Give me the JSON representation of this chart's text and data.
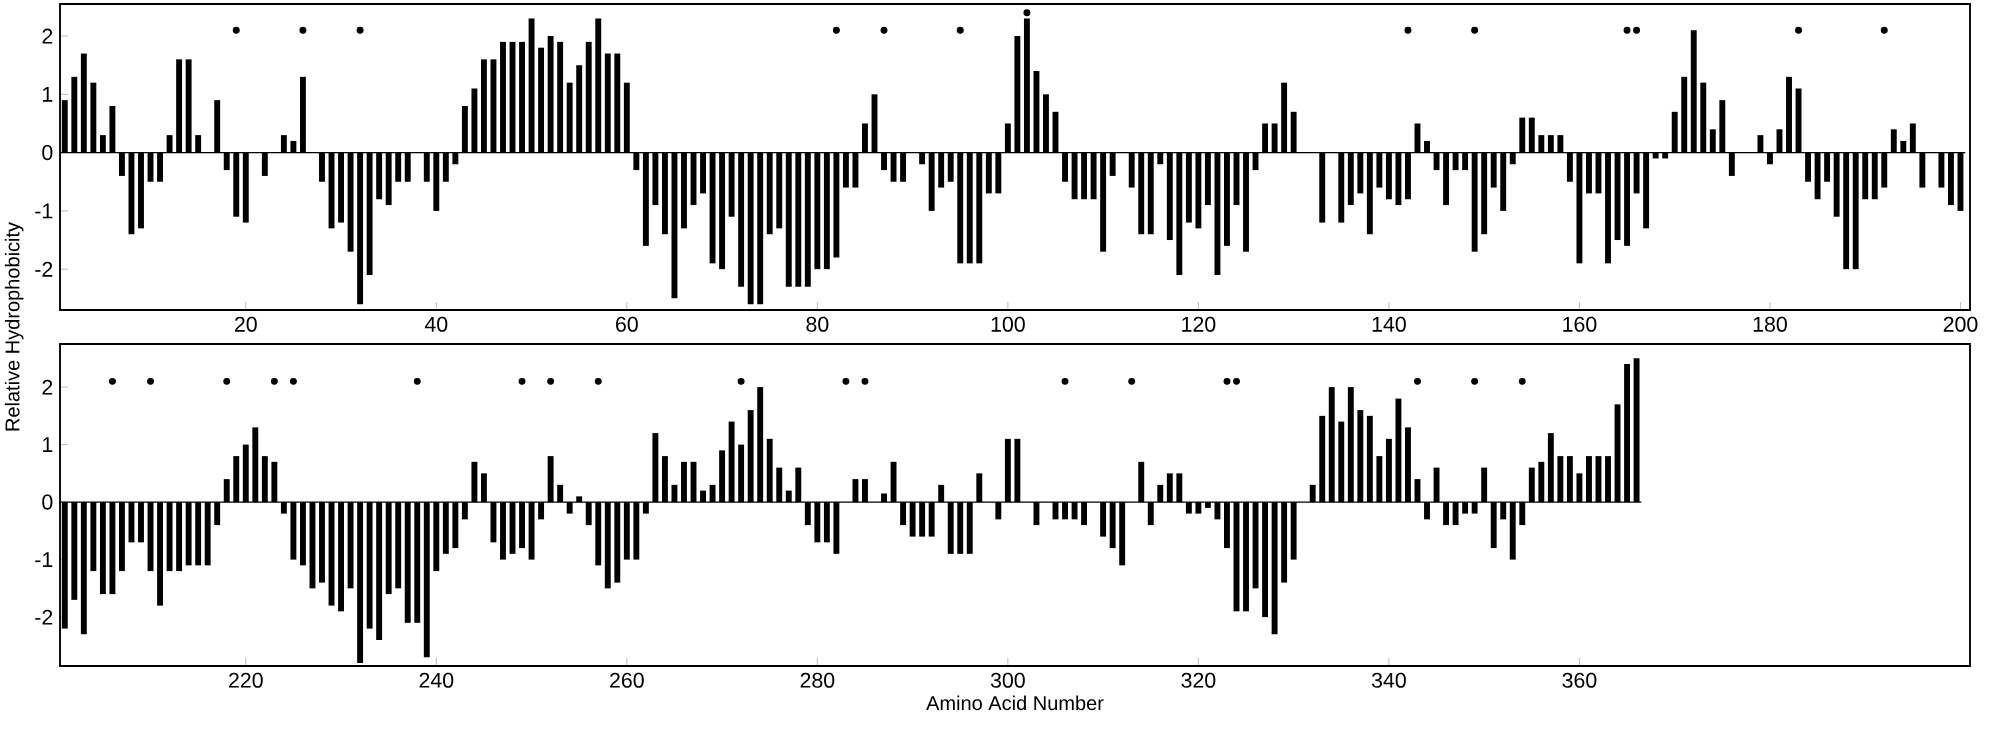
{
  "chart_data": [
    {
      "type": "bar",
      "ylabel": "Relative Hydrophobicity",
      "xlim": [
        0.5,
        201
      ],
      "ylim": [
        -2.7,
        2.55
      ],
      "xticks": [
        20,
        40,
        60,
        80,
        100,
        120,
        140,
        160,
        180,
        200
      ],
      "yticks": [
        -2,
        -1,
        0,
        1,
        2
      ],
      "series": [
        {
          "color": "#000000",
          "x": [
            1,
            2,
            3,
            4,
            5,
            6,
            7,
            8,
            9,
            10,
            11,
            12,
            13,
            14,
            15,
            16,
            17,
            18,
            19,
            20,
            21,
            22,
            23,
            24,
            25,
            26,
            27,
            28,
            29,
            30,
            31,
            32,
            33,
            34,
            35,
            36,
            37,
            38,
            39,
            40,
            41,
            42,
            43,
            44,
            45,
            46,
            47,
            48,
            49,
            50,
            51,
            52,
            53,
            54,
            55,
            56,
            57,
            58,
            59,
            60,
            61,
            62,
            63,
            64,
            65,
            66,
            67,
            68,
            69,
            70,
            71,
            72,
            73,
            74,
            75,
            76,
            77,
            78,
            79,
            80,
            81,
            82,
            83,
            84,
            85,
            86,
            87,
            88,
            89,
            90,
            91,
            92,
            93,
            94,
            95,
            96,
            97,
            98,
            99,
            100,
            101,
            102,
            103,
            104,
            105,
            106,
            107,
            108,
            109,
            110,
            111,
            112,
            113,
            114,
            115,
            116,
            117,
            118,
            119,
            120,
            121,
            122,
            123,
            124,
            125,
            126,
            127,
            128,
            129,
            130,
            131,
            132,
            133,
            134,
            135,
            136,
            137,
            138,
            139,
            140,
            141,
            142,
            143,
            144,
            145,
            146,
            147,
            148,
            149,
            150,
            151,
            152,
            153,
            154,
            155,
            156,
            157,
            158,
            159,
            160,
            161,
            162,
            163,
            164,
            165,
            166,
            167,
            168,
            169,
            170,
            171,
            172,
            173,
            174,
            175,
            176,
            177,
            178,
            179,
            180,
            181,
            182,
            183,
            184,
            185,
            186,
            187,
            188,
            189,
            190,
            191,
            192,
            193,
            194,
            195,
            196,
            197,
            198,
            199,
            200
          ],
          "values": [
            0.9,
            1.3,
            1.7,
            1.2,
            0.3,
            0.8,
            -0.4,
            -1.4,
            -1.3,
            -0.5,
            -0.5,
            0.3,
            1.6,
            1.6,
            0.3,
            0,
            0.9,
            -0.3,
            -1.1,
            -1.2,
            0,
            -0.4,
            0,
            0.3,
            0.2,
            1.3,
            0,
            -0.5,
            -1.3,
            -1.2,
            -1.7,
            -2.6,
            -2.1,
            -0.8,
            -0.9,
            -0.5,
            -0.5,
            0,
            -0.5,
            -1.0,
            -0.5,
            -0.2,
            0.8,
            1.1,
            1.6,
            1.6,
            1.9,
            1.9,
            1.9,
            2.3,
            1.8,
            2.0,
            1.9,
            1.2,
            1.5,
            1.9,
            2.3,
            1.7,
            1.7,
            1.2,
            -0.3,
            -1.6,
            -0.9,
            -1.4,
            -2.5,
            -1.3,
            -0.9,
            -0.7,
            -1.9,
            -2.0,
            -1.1,
            -2.3,
            -2.6,
            -2.6,
            -1.4,
            -1.3,
            -2.3,
            -2.3,
            -2.3,
            -2.0,
            -2.0,
            -1.8,
            -0.6,
            -0.6,
            0.5,
            1.0,
            -0.3,
            -0.5,
            -0.5,
            0,
            -0.2,
            -1.0,
            -0.6,
            -0.5,
            -1.9,
            -1.9,
            -1.9,
            -0.7,
            -0.7,
            0.5,
            2.0,
            2.3,
            1.4,
            1.0,
            0.7,
            -0.5,
            -0.8,
            -0.8,
            -0.8,
            -1.7,
            -0.4,
            0,
            -0.6,
            -1.4,
            -1.4,
            -0.2,
            -1.5,
            -2.1,
            -1.2,
            -1.3,
            -0.9,
            -2.1,
            -1.6,
            -0.9,
            -1.7,
            -0.3,
            0.5,
            0.5,
            1.2,
            0.7,
            0,
            0,
            -1.2,
            0,
            -1.2,
            -0.9,
            -0.7,
            -1.4,
            -0.6,
            -0.8,
            -0.9,
            -0.8,
            0.5,
            0.2,
            -0.3,
            -0.9,
            -0.3,
            -0.3,
            -1.7,
            -1.4,
            -0.6,
            -1.0,
            -0.2,
            0.6,
            0.6,
            0.3,
            0.3,
            0.3,
            -0.5,
            -1.9,
            -0.7,
            -0.7,
            -1.9,
            -1.5,
            -1.6,
            -0.7,
            -1.3,
            -0.1,
            -0.1,
            0.7,
            1.3,
            2.1,
            1.2,
            0.4,
            0.9,
            -0.4,
            0,
            0,
            0.3,
            -0.2,
            0.4,
            1.3,
            1.1,
            -0.5,
            -0.8,
            -0.5,
            -1.1,
            -2.0,
            -2.0,
            -0.8,
            -0.8,
            -0.6,
            0.4,
            0.2,
            0.5,
            -0.6,
            0,
            -0.6,
            -0.9,
            -1.0
          ]
        },
        {
          "type": "scatter",
          "color": "#000000",
          "marker": "circle",
          "x": [
            19,
            26,
            32,
            82,
            87,
            95,
            102,
            142,
            149,
            165,
            166,
            183,
            192
          ],
          "values": [
            2.1,
            2.1,
            2.1,
            2.1,
            2.1,
            2.1,
            2.4,
            2.1,
            2.1,
            2.1,
            2.1,
            2.1,
            2.1
          ]
        }
      ]
    },
    {
      "type": "bar",
      "xlabel": "Amino Acid Number",
      "xlim": [
        200.5,
        401
      ],
      "ylim": [
        -2.85,
        2.75
      ],
      "xticks": [
        220,
        240,
        260,
        280,
        300,
        320,
        340,
        360
      ],
      "yticks": [
        -2,
        -1,
        0,
        1,
        2
      ],
      "series": [
        {
          "color": "#000000",
          "x": [
            201,
            202,
            203,
            204,
            205,
            206,
            207,
            208,
            209,
            210,
            211,
            212,
            213,
            214,
            215,
            216,
            217,
            218,
            219,
            220,
            221,
            222,
            223,
            224,
            225,
            226,
            227,
            228,
            229,
            230,
            231,
            232,
            233,
            234,
            235,
            236,
            237,
            238,
            239,
            240,
            241,
            242,
            243,
            244,
            245,
            246,
            247,
            248,
            249,
            250,
            251,
            252,
            253,
            254,
            255,
            256,
            257,
            258,
            259,
            260,
            261,
            262,
            263,
            264,
            265,
            266,
            267,
            268,
            269,
            270,
            271,
            272,
            273,
            274,
            275,
            276,
            277,
            278,
            279,
            280,
            281,
            282,
            283,
            284,
            285,
            286,
            287,
            288,
            289,
            290,
            291,
            292,
            293,
            294,
            295,
            296,
            297,
            298,
            299,
            300,
            301,
            302,
            303,
            304,
            305,
            306,
            307,
            308,
            309,
            310,
            311,
            312,
            313,
            314,
            315,
            316,
            317,
            318,
            319,
            320,
            321,
            322,
            323,
            324,
            325,
            326,
            327,
            328,
            329,
            330,
            331,
            332,
            333,
            334,
            335,
            336,
            337,
            338,
            339,
            340,
            341,
            342,
            343,
            344,
            345,
            346,
            347,
            348,
            349,
            350,
            351,
            352,
            353,
            354,
            355,
            356,
            357,
            358,
            359,
            360,
            361,
            362,
            363,
            364,
            365,
            366
          ],
          "values": [
            -2.2,
            -1.7,
            -2.3,
            -1.2,
            -1.6,
            -1.6,
            -1.2,
            -0.7,
            -0.7,
            -1.2,
            -1.8,
            -1.2,
            -1.2,
            -1.1,
            -1.1,
            -1.1,
            -0.4,
            0.4,
            0.8,
            1.0,
            1.3,
            0.8,
            0.7,
            -0.2,
            -1.0,
            -1.1,
            -1.5,
            -1.4,
            -1.8,
            -1.9,
            -1.5,
            -2.8,
            -2.2,
            -2.4,
            -1.6,
            -1.5,
            -2.1,
            -2.1,
            -2.7,
            -1.2,
            -0.9,
            -0.8,
            -0.3,
            0.7,
            0.5,
            -0.7,
            -1.0,
            -0.9,
            -0.8,
            -1.0,
            -0.3,
            0.8,
            0.3,
            -0.2,
            0.1,
            -0.4,
            -1.1,
            -1.5,
            -1.4,
            -1.0,
            -1.0,
            -0.2,
            1.2,
            0.8,
            0.3,
            0.7,
            0.7,
            0.2,
            0.3,
            0.9,
            1.4,
            1.0,
            1.6,
            2.0,
            1.1,
            0.6,
            0.2,
            0.6,
            -0.4,
            -0.7,
            -0.7,
            -0.9,
            0,
            0.4,
            0.4,
            0,
            0.15,
            0.7,
            -0.4,
            -0.6,
            -0.6,
            -0.6,
            0.3,
            -0.9,
            -0.9,
            -0.9,
            0.5,
            0,
            -0.3,
            1.1,
            1.1,
            0,
            -0.4,
            0,
            -0.3,
            -0.3,
            -0.3,
            -0.4,
            0,
            -0.6,
            -0.8,
            -1.1,
            0,
            0.7,
            -0.4,
            0.3,
            0.5,
            0.5,
            -0.2,
            -0.2,
            -0.1,
            -0.3,
            -0.8,
            -1.9,
            -1.9,
            -1.5,
            -2.0,
            -2.3,
            -1.4,
            -1.0,
            0,
            0.3,
            1.5,
            2.0,
            1.4,
            2.0,
            1.6,
            1.5,
            0.8,
            1.1,
            1.8,
            1.3,
            0.4,
            -0.3,
            0.6,
            -0.4,
            -0.4,
            -0.2,
            -0.2,
            0.6,
            -0.8,
            -0.3,
            -1.0,
            -0.4,
            0.6,
            0.7,
            1.2,
            0.8,
            0.8,
            0.5,
            0.8,
            0.8,
            0.8,
            1.7,
            2.4,
            2.5
          ]
        },
        {
          "type": "scatter",
          "color": "#000000",
          "marker": "circle",
          "x": [
            206,
            210,
            218,
            223,
            225,
            238,
            249,
            252,
            257,
            272,
            283,
            285,
            306,
            313,
            323,
            324,
            343,
            349,
            354
          ],
          "values": [
            2.1,
            2.1,
            2.1,
            2.1,
            2.1,
            2.1,
            2.1,
            2.1,
            2.1,
            2.1,
            2.1,
            2.1,
            2.1,
            2.1,
            2.1,
            2.1,
            2.1,
            2.1,
            2.1
          ]
        }
      ]
    }
  ]
}
